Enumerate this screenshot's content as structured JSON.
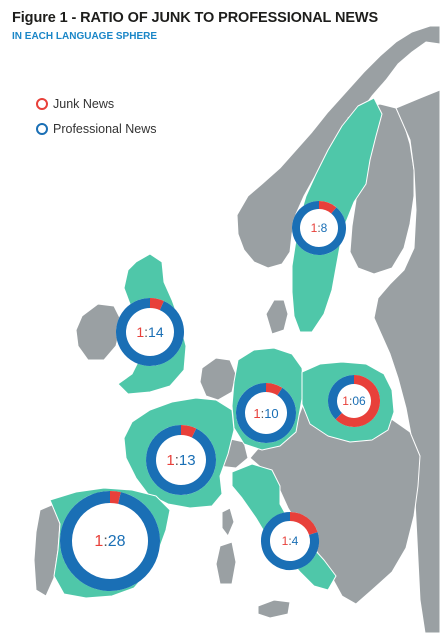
{
  "header": {
    "title": "Figure 1 - RATIO OF JUNK TO PROFESSIONAL NEWS",
    "subtitle": "IN EACH LANGUAGE SPHERE"
  },
  "legend": {
    "items": [
      {
        "label": "Junk News",
        "color": "#e8403a"
      },
      {
        "label": "Professional News",
        "color": "#1a6fb5"
      }
    ]
  },
  "colors": {
    "junk": "#e8403a",
    "professional": "#1a6fb5",
    "highlight_land": "#4fc7a9",
    "other_land": "#9aa0a3",
    "sea": "#ffffff"
  },
  "chart_data": {
    "type": "donut-map",
    "title": "Figure 1 - RATIO OF JUNK TO PROFESSIONAL NEWS",
    "subtitle": "IN EACH LANGUAGE SPHERE",
    "series": [
      {
        "name": "Junk News"
      },
      {
        "name": "Professional News"
      }
    ],
    "regions": [
      {
        "label": "1:8",
        "junk": 1,
        "professional": 8
      },
      {
        "label": "1:14",
        "junk": 1,
        "professional": 14
      },
      {
        "label": "1:06",
        "junk": 1,
        "professional": 0.6
      },
      {
        "label": "1:10",
        "junk": 1,
        "professional": 10
      },
      {
        "label": "1:13",
        "junk": 1,
        "professional": 13
      },
      {
        "label": "1:28",
        "junk": 1,
        "professional": 28
      },
      {
        "label": "1:4",
        "junk": 1,
        "professional": 4
      }
    ]
  }
}
